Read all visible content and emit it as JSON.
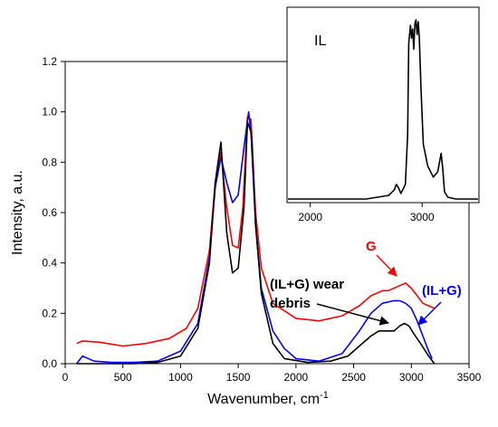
{
  "chart_data": [
    {
      "type": "line",
      "title": "",
      "xlabel": "Wavenumber, cm",
      "xlabel_superscript": "-1",
      "ylabel": "Intensity, a.u.",
      "xlim": [
        0,
        3500
      ],
      "ylim": [
        0,
        1.2
      ],
      "grid": false,
      "x_ticks": [
        "0",
        "500",
        "1000",
        "1500",
        "2000",
        "2500",
        "3000",
        "3500"
      ],
      "y_ticks": [
        "0.0",
        "0.2",
        "0.4",
        "0.6",
        "0.8",
        "1.0",
        "1.2"
      ],
      "series": [
        {
          "name": "G",
          "color": "#ff0000",
          "x": [
            100,
            150,
            300,
            500,
            700,
            900,
            1050,
            1150,
            1250,
            1300,
            1350,
            1400,
            1450,
            1500,
            1540,
            1580,
            1610,
            1650,
            1700,
            1800,
            2000,
            2200,
            2400,
            2550,
            2650,
            2700,
            2750,
            2800,
            2850,
            2900,
            2950,
            3000,
            3050,
            3100,
            3150,
            3200
          ],
          "y": [
            0.08,
            0.09,
            0.085,
            0.07,
            0.08,
            0.1,
            0.14,
            0.22,
            0.45,
            0.72,
            0.84,
            0.62,
            0.47,
            0.46,
            0.62,
            0.98,
            0.97,
            0.6,
            0.38,
            0.24,
            0.18,
            0.17,
            0.19,
            0.23,
            0.27,
            0.28,
            0.29,
            0.29,
            0.3,
            0.31,
            0.32,
            0.3,
            0.27,
            0.24,
            0.23,
            0.22
          ]
        },
        {
          "name": "(IL+G)",
          "color": "#0000ff",
          "x": [
            100,
            150,
            250,
            400,
            600,
            800,
            1000,
            1150,
            1250,
            1300,
            1350,
            1400,
            1450,
            1500,
            1550,
            1590,
            1620,
            1650,
            1700,
            1800,
            1900,
            2000,
            2200,
            2400,
            2550,
            2650,
            2750,
            2850,
            2900,
            2950,
            3000,
            3050,
            3100,
            3150,
            3180
          ],
          "y": [
            0.0,
            0.03,
            0.01,
            0.005,
            0.005,
            0.01,
            0.05,
            0.16,
            0.42,
            0.7,
            0.82,
            0.72,
            0.64,
            0.67,
            0.86,
            1.0,
            0.88,
            0.55,
            0.3,
            0.13,
            0.06,
            0.02,
            0.01,
            0.04,
            0.13,
            0.2,
            0.24,
            0.25,
            0.25,
            0.24,
            0.22,
            0.17,
            0.11,
            0.05,
            0.02
          ]
        },
        {
          "name": "(IL+G) wear debris",
          "color": "#000000",
          "x": [
            100,
            200,
            400,
            600,
            800,
            1000,
            1150,
            1250,
            1300,
            1350,
            1400,
            1450,
            1500,
            1550,
            1580,
            1610,
            1650,
            1700,
            1800,
            1900,
            2100,
            2300,
            2450,
            2550,
            2650,
            2720,
            2780,
            2850,
            2900,
            2940,
            2980,
            3020,
            3080,
            3150,
            3200
          ],
          "y": [
            0.0,
            0.0,
            0.0,
            0.0,
            0.005,
            0.03,
            0.14,
            0.4,
            0.72,
            0.88,
            0.52,
            0.36,
            0.38,
            0.62,
            0.96,
            0.92,
            0.55,
            0.28,
            0.08,
            0.02,
            0.005,
            0.01,
            0.03,
            0.07,
            0.11,
            0.13,
            0.13,
            0.13,
            0.15,
            0.16,
            0.15,
            0.12,
            0.08,
            0.03,
            0.0
          ]
        }
      ],
      "annotations": {
        "g": {
          "text": "G",
          "color": "#ff0000"
        },
        "ilg": {
          "text": "(IL+G)",
          "color": "#0000ff"
        },
        "debris_line1": {
          "text": "(IL+G) wear",
          "color": "#000000"
        },
        "debris_line2": {
          "text": "debris",
          "color": "#000000"
        }
      }
    },
    {
      "type": "line",
      "title": "IL",
      "xlim": [
        1800,
        3500
      ],
      "x_ticks": [
        "2000",
        "3000"
      ],
      "series": [
        {
          "name": "IL",
          "color": "#000000",
          "x": [
            1800,
            2000,
            2200,
            2500,
            2700,
            2750,
            2770,
            2790,
            2810,
            2850,
            2870,
            2880,
            2895,
            2905,
            2915,
            2925,
            2935,
            2945,
            2955,
            2965,
            2975,
            2990,
            3010,
            3050,
            3100,
            3140,
            3170,
            3185,
            3200,
            3230,
            3300,
            3400,
            3500
          ],
          "y": [
            0.0,
            0.0,
            0.0,
            0.0,
            0.02,
            0.05,
            0.08,
            0.06,
            0.03,
            0.08,
            0.35,
            0.85,
            0.95,
            0.88,
            0.93,
            0.82,
            0.96,
            0.98,
            0.9,
            0.97,
            0.88,
            0.6,
            0.3,
            0.18,
            0.12,
            0.15,
            0.25,
            0.16,
            0.04,
            0.01,
            0.0,
            0.0,
            0.0
          ]
        }
      ]
    }
  ]
}
